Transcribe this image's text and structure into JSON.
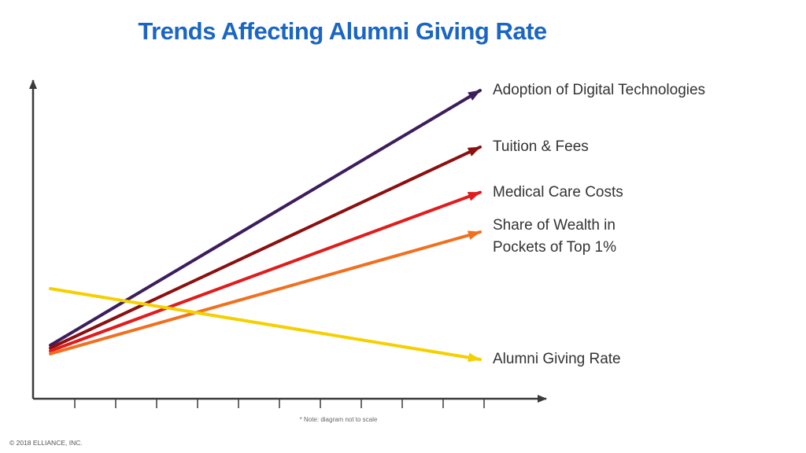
{
  "title": "Trends Affecting Alumni Giving Rate",
  "colors": {
    "title": "#1a66c2",
    "axis": "#3a3a3a"
  },
  "chart_data": {
    "type": "line",
    "title": "Trends Affecting Alumni Giving Rate",
    "xlabel": "",
    "ylabel": "",
    "x_ticks": 11,
    "grid": false,
    "note": "* Note: diagram not to scale",
    "series": [
      {
        "name": "Adoption of Digital Technologies",
        "color": "#3d1d5c",
        "start": 1.0,
        "end": 10.0
      },
      {
        "name": "Tuition & Fees",
        "color": "#8b1010",
        "start": 0.9,
        "end": 8.0
      },
      {
        "name": "Medical Care Costs",
        "color": "#e01c1c",
        "start": 0.8,
        "end": 6.4
      },
      {
        "name": "Share of Wealth in Pockets of Top 1%",
        "label_lines": [
          "Share of Wealth in",
          "Pockets of Top 1%"
        ],
        "color": "#f07020",
        "start": 0.7,
        "end": 5.0
      },
      {
        "name": "Alumni Giving Rate",
        "color": "#f5d000",
        "start": 3.0,
        "end": 0.5
      }
    ]
  },
  "footer": {
    "note": "* Note: diagram not to scale",
    "copyright": "© 2018 ELLIANCE, INC."
  }
}
